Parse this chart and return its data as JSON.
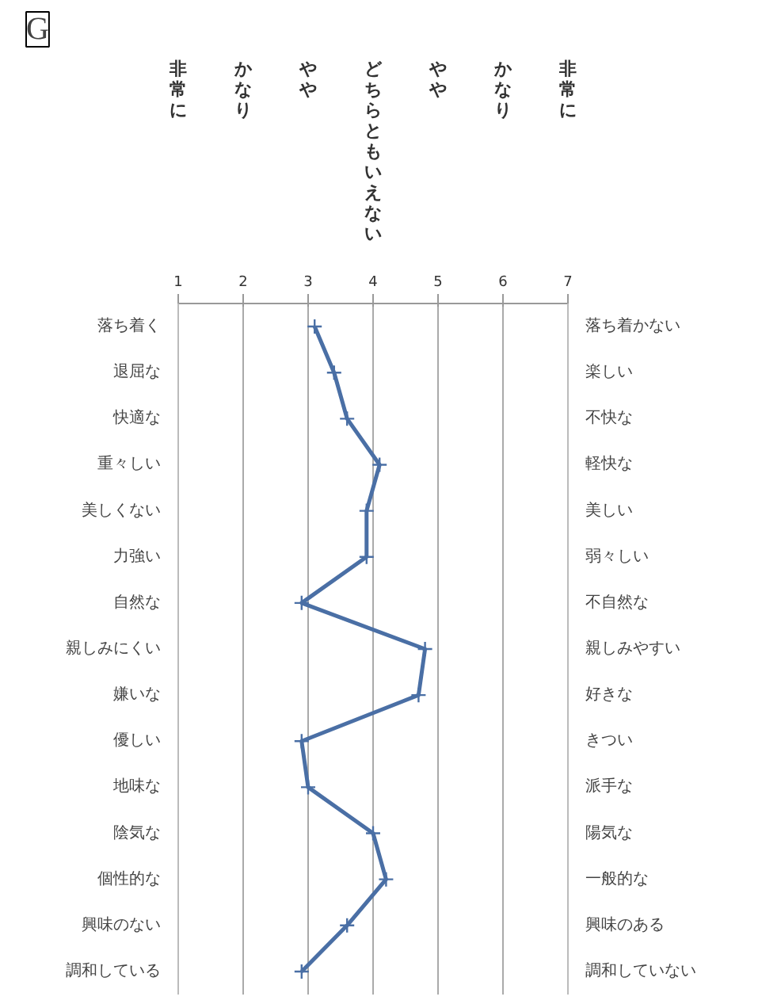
{
  "chart_data": {
    "type": "line",
    "title": "G",
    "orientation": "horizontal",
    "categories": [
      "落ち着く",
      "退屈な",
      "快適な",
      "重々しい",
      "美しくない",
      "力強い",
      "自然な",
      "親しみにくい",
      "嫌いな",
      "優しい",
      "地味な",
      "陰気な",
      "個性的な",
      "興味のない",
      "調和している"
    ],
    "y2_categories": [
      "落ち着かない",
      "楽しい",
      "不快な",
      "軽快な",
      "美しい",
      "弱々しい",
      "不自然な",
      "親しみやすい",
      "好きな",
      "きつい",
      "派手な",
      "陽気な",
      "一般的な",
      "興味のある",
      "調和していない"
    ],
    "series": [
      {
        "color": "#4a6fa5",
        "values": [
          3.1,
          3.4,
          3.6,
          4.1,
          3.9,
          3.9,
          2.9,
          4.8,
          4.7,
          2.9,
          3.0,
          4.0,
          4.2,
          3.6,
          2.9
        ]
      }
    ],
    "xlim": [
      1,
      7
    ],
    "xticks": [
      1,
      2,
      3,
      4,
      5,
      6,
      7
    ],
    "annotations": [
      "非常に",
      "かなり",
      "やや",
      "どちらともいえない",
      "やや",
      "かなり",
      "非常に"
    ],
    "grid": "x",
    "marker": "cross",
    "line_style": "solid"
  }
}
